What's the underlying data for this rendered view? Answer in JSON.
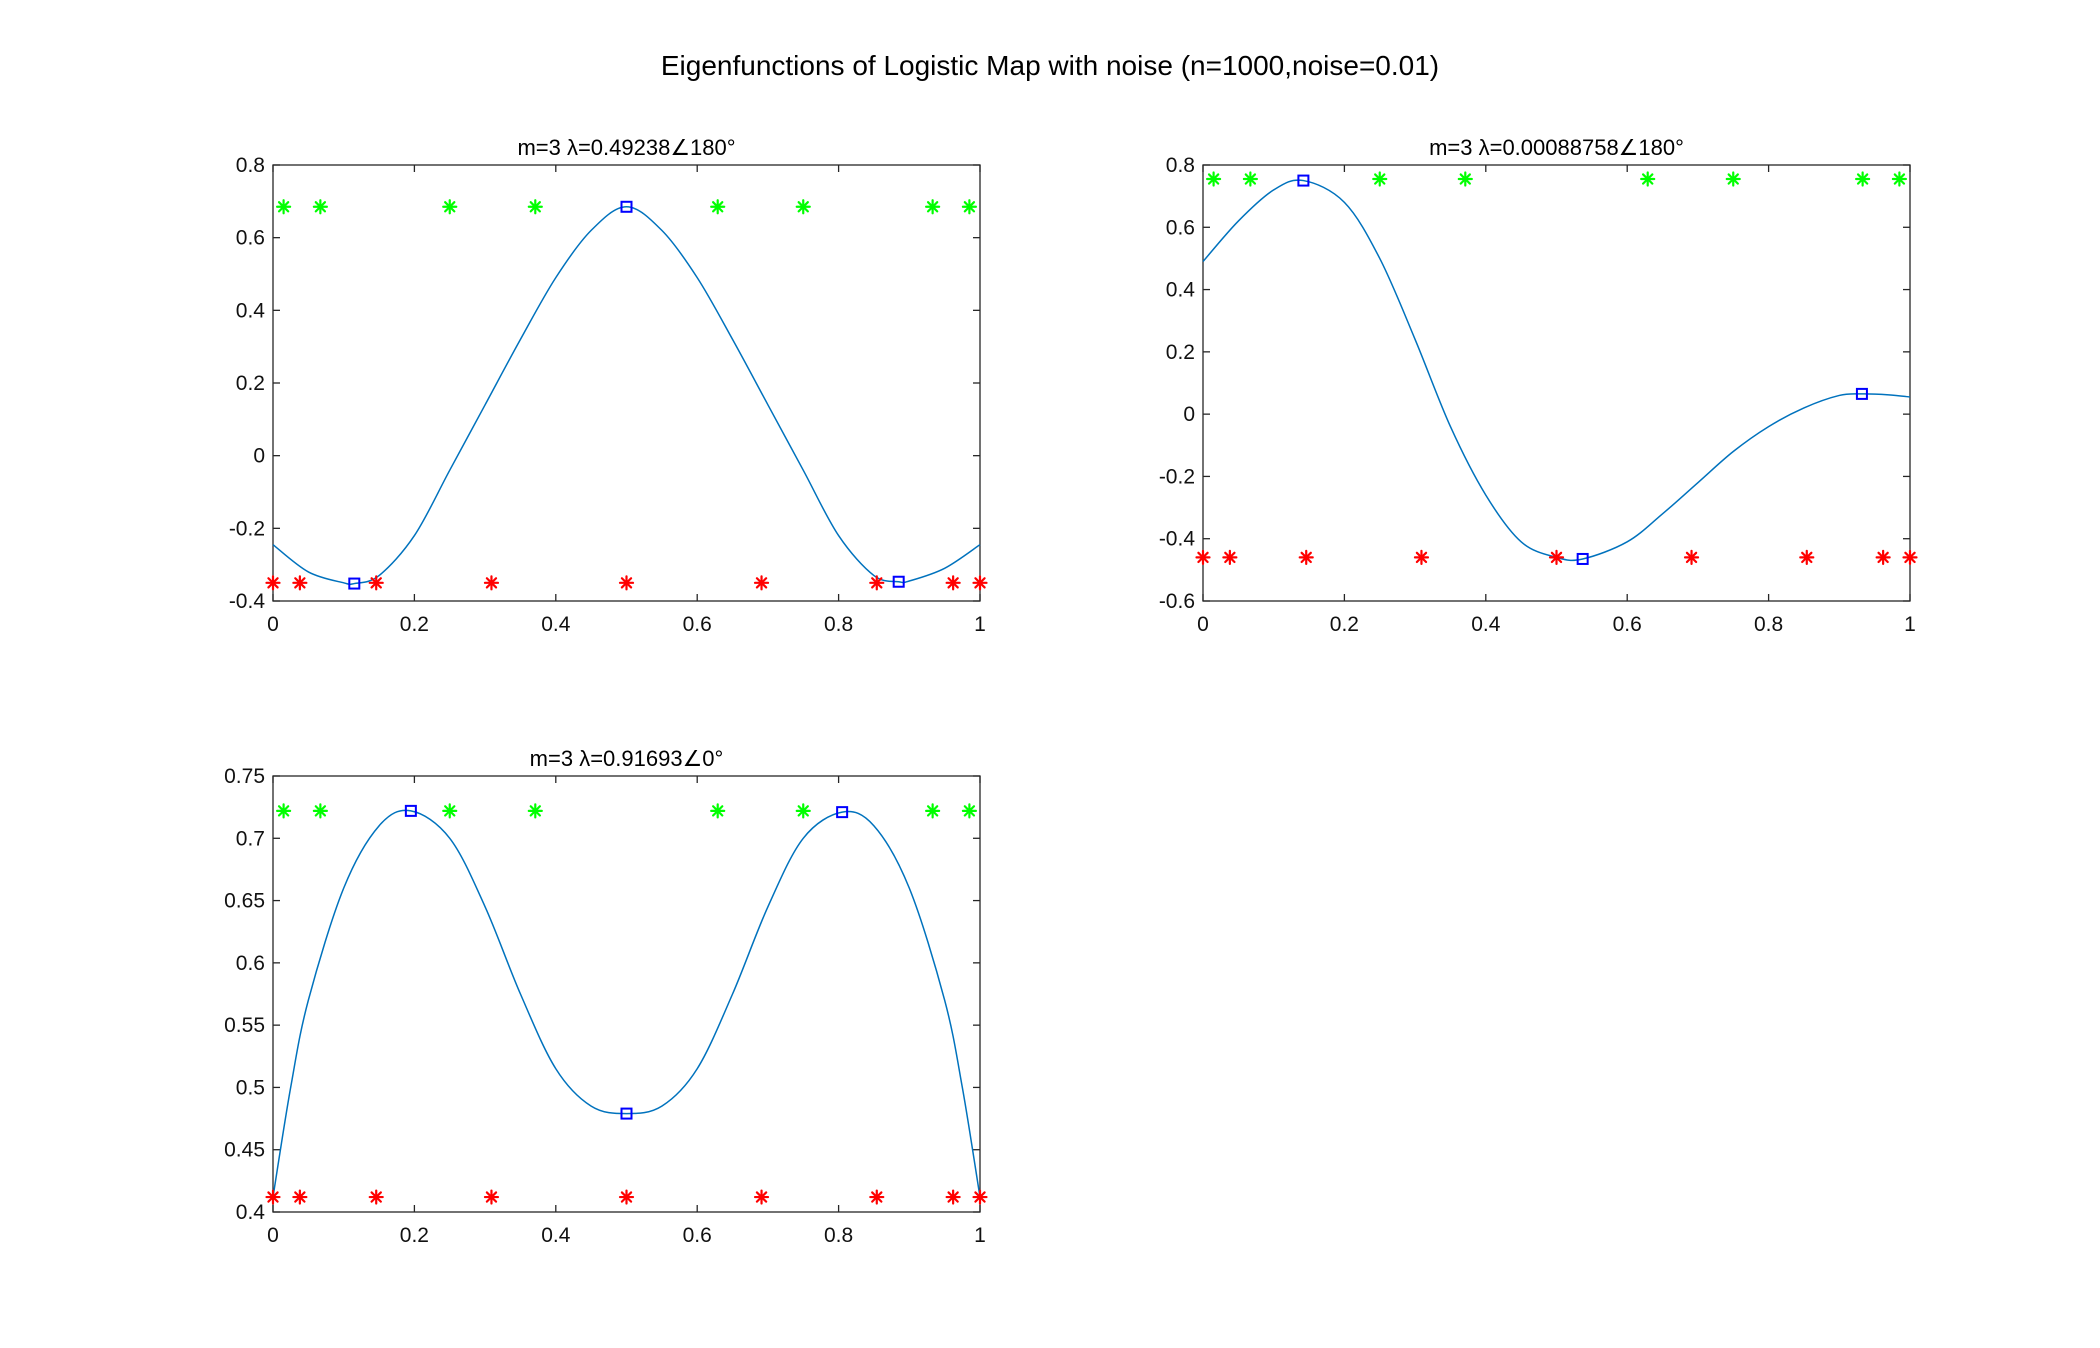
{
  "figure_title": "Eigenfunctions of Logistic Map with noise (n=1000,noise=0.01)",
  "colors": {
    "curve": "#0072BD",
    "extrema": "#0000FF",
    "green_marker": "#00FF00",
    "red_marker": "#FF0000",
    "axes": "#262626"
  },
  "chart_data": [
    {
      "type": "line",
      "title": "m=3 λ=0.49238∠180°",
      "xlim": [
        0,
        1
      ],
      "ylim": [
        -0.4,
        0.8
      ],
      "xticks": [
        0,
        0.2,
        0.4,
        0.6,
        0.8,
        1
      ],
      "yticks": [
        -0.4,
        -0.2,
        0,
        0.2,
        0.4,
        0.6,
        0.8
      ],
      "xtick_labels": [
        "0",
        "0.2",
        "0.4",
        "0.6",
        "0.8",
        "1"
      ],
      "ytick_labels": [
        "-0.4",
        "-0.2",
        "0",
        "0.2",
        "0.4",
        "0.6",
        "0.8"
      ],
      "curve": {
        "x": [
          0,
          0.05,
          0.1,
          0.115,
          0.15,
          0.2,
          0.25,
          0.3,
          0.35,
          0.4,
          0.45,
          0.5,
          0.55,
          0.6,
          0.65,
          0.7,
          0.75,
          0.8,
          0.85,
          0.885,
          0.9,
          0.95,
          1
        ],
        "y": [
          -0.245,
          -0.32,
          -0.35,
          -0.352,
          -0.33,
          -0.22,
          -0.04,
          0.14,
          0.32,
          0.49,
          0.62,
          0.685,
          0.62,
          0.49,
          0.32,
          0.14,
          -0.04,
          -0.22,
          -0.33,
          -0.347,
          -0.345,
          -0.31,
          -0.245
        ]
      },
      "extrema": {
        "x": [
          0.115,
          0.5,
          0.885
        ],
        "y": [
          -0.352,
          0.685,
          -0.347
        ]
      },
      "green_markers": {
        "x": [
          0.015,
          0.067,
          0.25,
          0.371,
          0.629,
          0.75,
          0.933,
          0.985
        ],
        "y": 0.685
      },
      "red_markers": {
        "x": [
          0,
          0.038,
          0.146,
          0.309,
          0.5,
          0.691,
          0.854,
          0.962,
          1
        ],
        "y": -0.35
      }
    },
    {
      "type": "line",
      "title": "m=3 λ=0.00088758∠180°",
      "xlim": [
        0,
        1
      ],
      "ylim": [
        -0.6,
        0.8
      ],
      "xticks": [
        0,
        0.2,
        0.4,
        0.6,
        0.8,
        1
      ],
      "yticks": [
        -0.6,
        -0.4,
        -0.2,
        0,
        0.2,
        0.4,
        0.6,
        0.8
      ],
      "xtick_labels": [
        "0",
        "0.2",
        "0.4",
        "0.6",
        "0.8",
        "1"
      ],
      "ytick_labels": [
        "-0.6",
        "-0.4",
        "-0.2",
        "0",
        "0.2",
        "0.4",
        "0.6",
        "0.8"
      ],
      "curve": {
        "x": [
          0,
          0.05,
          0.1,
          0.142,
          0.2,
          0.25,
          0.3,
          0.35,
          0.4,
          0.45,
          0.5,
          0.537,
          0.6,
          0.65,
          0.7,
          0.75,
          0.8,
          0.85,
          0.9,
          0.932,
          0.97,
          1
        ],
        "y": [
          0.49,
          0.62,
          0.72,
          0.75,
          0.68,
          0.5,
          0.24,
          -0.04,
          -0.26,
          -0.41,
          -0.46,
          -0.465,
          -0.41,
          -0.32,
          -0.22,
          -0.12,
          -0.04,
          0.02,
          0.06,
          0.065,
          0.062,
          0.055
        ]
      },
      "extrema": {
        "x": [
          0.142,
          0.537,
          0.932
        ],
        "y": [
          0.75,
          -0.465,
          0.065
        ]
      },
      "green_markers": {
        "x": [
          0.015,
          0.067,
          0.25,
          0.371,
          0.629,
          0.75,
          0.933,
          0.985
        ],
        "y": 0.755
      },
      "red_markers": {
        "x": [
          0,
          0.038,
          0.146,
          0.309,
          0.5,
          0.691,
          0.854,
          0.962,
          1
        ],
        "y": -0.46
      }
    },
    {
      "type": "line",
      "title": "m=3 λ=0.91693∠0°",
      "xlim": [
        0,
        1
      ],
      "ylim": [
        0.4,
        0.75
      ],
      "xticks": [
        0,
        0.2,
        0.4,
        0.6,
        0.8,
        1
      ],
      "yticks": [
        0.4,
        0.45,
        0.5,
        0.55,
        0.6,
        0.65,
        0.7,
        0.75
      ],
      "xtick_labels": [
        "0",
        "0.2",
        "0.4",
        "0.6",
        "0.8",
        "1"
      ],
      "ytick_labels": [
        "0.4",
        "0.45",
        "0.5",
        "0.55",
        "0.6",
        "0.65",
        "0.7",
        "0.75"
      ],
      "curve": {
        "x": [
          0,
          0.025,
          0.05,
          0.1,
          0.15,
          0.195,
          0.25,
          0.3,
          0.35,
          0.4,
          0.45,
          0.5,
          0.55,
          0.6,
          0.65,
          0.7,
          0.75,
          0.805,
          0.85,
          0.9,
          0.95,
          0.975,
          1
        ],
        "y": [
          0.412,
          0.5,
          0.57,
          0.66,
          0.71,
          0.722,
          0.7,
          0.645,
          0.575,
          0.515,
          0.485,
          0.479,
          0.485,
          0.515,
          0.575,
          0.645,
          0.7,
          0.721,
          0.71,
          0.66,
          0.57,
          0.5,
          0.412
        ]
      },
      "extrema": {
        "x": [
          0.195,
          0.5,
          0.805
        ],
        "y": [
          0.722,
          0.479,
          0.721
        ]
      },
      "green_markers": {
        "x": [
          0.015,
          0.067,
          0.25,
          0.371,
          0.629,
          0.75,
          0.933,
          0.985
        ],
        "y": 0.722
      },
      "red_markers": {
        "x": [
          0,
          0.038,
          0.146,
          0.309,
          0.5,
          0.691,
          0.854,
          0.962,
          1
        ],
        "y": 0.412
      }
    }
  ]
}
